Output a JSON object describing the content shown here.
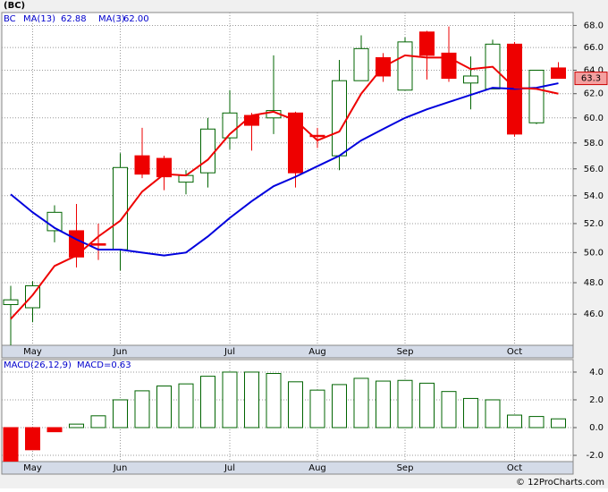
{
  "chart_data": [
    {
      "type": "candlestick",
      "title": "(BC)",
      "legend": [
        "BC",
        "MA(13)",
        "62.88",
        "MA(3)",
        "62.00"
      ],
      "categories": [
        null,
        "May",
        null,
        null,
        null,
        "Jun",
        null,
        null,
        null,
        null,
        "Jul",
        null,
        null,
        null,
        "Aug",
        null,
        null,
        null,
        "Sep",
        null,
        null,
        null,
        null,
        "Oct",
        null,
        null
      ],
      "open": [
        46.6,
        46.4,
        51.5,
        51.5,
        50.6,
        50.2,
        57.0,
        56.8,
        55.0,
        55.7,
        58.4,
        60.2,
        60.0,
        60.4,
        58.6,
        57.0,
        63.1,
        65.1,
        62.3,
        67.4,
        65.5,
        62.9,
        62.4,
        66.3,
        59.6,
        64.2
      ],
      "high": [
        47.8,
        48.1,
        53.3,
        53.4,
        52.0,
        57.2,
        59.2,
        57.0,
        55.9,
        60.0,
        62.3,
        60.4,
        65.3,
        60.5,
        59.2,
        64.9,
        67.1,
        65.5,
        66.9,
        67.5,
        67.9,
        65.2,
        66.7,
        66.5,
        64.0,
        64.7
      ],
      "low": [
        44.1,
        45.5,
        50.7,
        49.0,
        49.5,
        48.8,
        55.3,
        54.4,
        54.1,
        54.6,
        57.5,
        57.4,
        58.7,
        54.6,
        57.6,
        55.9,
        63.1,
        63.0,
        62.3,
        63.2,
        63.0,
        60.7,
        62.4,
        58.5,
        59.5,
        63.3
      ],
      "close": [
        46.9,
        47.8,
        52.8,
        49.7,
        50.5,
        56.1,
        55.6,
        55.4,
        55.5,
        59.1,
        60.4,
        59.4,
        60.6,
        55.7,
        58.5,
        63.1,
        65.9,
        63.5,
        66.5,
        65.3,
        63.3,
        63.5,
        66.3,
        58.7,
        64.0,
        63.3
      ],
      "up_color": "#ffffff",
      "up_edge": "#006400",
      "down_color": "#ee0000",
      "series": [
        {
          "name": "MA(13)",
          "color": "#0000dd",
          "values": [
            54.1,
            52.8,
            51.7,
            50.9,
            50.2,
            50.2,
            50.0,
            49.8,
            50.0,
            51.1,
            52.4,
            53.6,
            54.7,
            55.4,
            56.2,
            57.0,
            58.2,
            59.1,
            60.0,
            60.7,
            61.3,
            61.9,
            62.5,
            62.4,
            62.5,
            62.88
          ]
        },
        {
          "name": "MA(3)",
          "color": "#ee0000",
          "values": [
            45.7,
            47.2,
            49.1,
            49.8,
            51.1,
            52.2,
            54.3,
            55.6,
            55.5,
            56.7,
            58.7,
            60.2,
            60.5,
            59.8,
            58.2,
            58.9,
            62.0,
            64.3,
            65.3,
            65.1,
            65.1,
            64.1,
            64.3,
            62.5,
            62.4,
            62.0
          ]
        }
      ],
      "last_price": 63.3,
      "log_scale": true,
      "grid": true,
      "ylim": [
        44.1,
        69.2
      ],
      "yticks": [
        {
          "value": 46,
          "label": "46.0"
        },
        {
          "value": 48,
          "label": "48.0"
        },
        {
          "value": 50,
          "label": "50.0"
        },
        {
          "value": 52,
          "label": "52.0"
        },
        {
          "value": 54,
          "label": "54.0"
        },
        {
          "value": 56,
          "label": "56.0"
        },
        {
          "value": 58,
          "label": "58.0"
        },
        {
          "value": 60,
          "label": "60.0"
        },
        {
          "value": 62,
          "label": "62.0"
        },
        {
          "value": 64,
          "label": "64.0"
        },
        {
          "value": 66,
          "label": "66.0"
        },
        {
          "value": 68,
          "label": "68.0"
        }
      ]
    },
    {
      "type": "bar",
      "legend": [
        "MACD(26,12,9)",
        "MACD=0.63"
      ],
      "values": [
        -2.7,
        -1.6,
        -0.3,
        0.25,
        0.85,
        2.0,
        2.65,
        3.0,
        3.15,
        3.7,
        4.0,
        4.0,
        3.9,
        3.3,
        2.7,
        3.1,
        3.55,
        3.35,
        3.4,
        3.2,
        2.6,
        2.1,
        2.0,
        0.9,
        0.8,
        0.63
      ],
      "pos_color": "#ffffff",
      "pos_edge": "#006400",
      "neg_color": "#ee0000",
      "grid": true,
      "ylim": [
        -2.45,
        4.9
      ],
      "yticks": [
        {
          "value": -2,
          "label": "-2.0"
        },
        {
          "value": 0,
          "label": "0.0"
        },
        {
          "value": 2,
          "label": "2.0"
        },
        {
          "value": 4,
          "label": "4.0"
        }
      ]
    }
  ],
  "footer": "© 12ProCharts.com"
}
